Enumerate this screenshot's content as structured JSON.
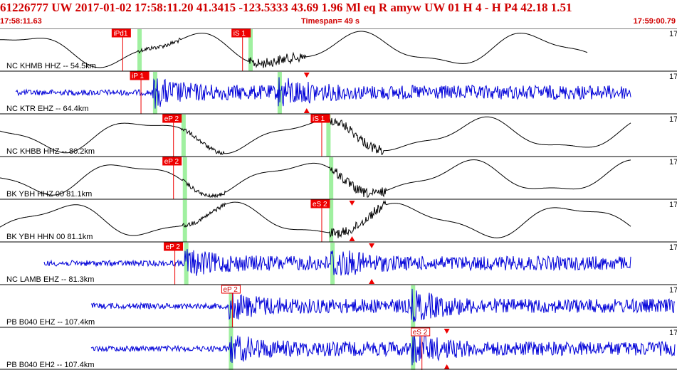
{
  "header": {
    "title": "61226777 UW 2017-01-02 17:58:11.20   41.3415 -123.5333  43.69  1.96 Ml  eq  R amyw     UW 01  H   4  -  H P4   42.18  1.51",
    "start_time": "17:58:11.63",
    "timespan": "Timespan=  49 s",
    "end_time": "17:59:00.79"
  },
  "colors": {
    "title_red": "#d00000",
    "trace_black": "#000000",
    "trace_blue": "#0000d8",
    "pick_red": "#ee0000",
    "phase_window_green": "#a0f0a0"
  },
  "channels": [
    {
      "label": "NC KHMB HHZ -- 54.5km",
      "color": "black",
      "scale_label": "17",
      "picks": [
        {
          "text": "iPd1",
          "filled": true,
          "x": 0.176
        },
        {
          "text": "iS 1",
          "filled": true,
          "x": 0.353
        }
      ],
      "windows": [
        0.203,
        0.367
      ],
      "markers": []
    },
    {
      "label": "NC KTR EHZ -- 64.4km",
      "color": "blue",
      "scale_label": "17",
      "picks": [
        {
          "text": "iP 1",
          "filled": true,
          "x": 0.203
        }
      ],
      "windows": [
        0.226,
        0.41
      ],
      "markers": [
        0.453
      ]
    },
    {
      "label": "NC KHBB HHZ -- 80.2km",
      "color": "black",
      "scale_label": "17",
      "picks": [
        {
          "text": "eP 2",
          "filled": true,
          "x": 0.251
        },
        {
          "text": "iS 1",
          "filled": true,
          "x": 0.47
        }
      ],
      "windows": [
        0.268,
        0.482
      ],
      "markers": []
    },
    {
      "label": "BK YBH HHZ 00 81.1km",
      "color": "black",
      "scale_label": "17",
      "picks": [
        {
          "text": "eP 2",
          "filled": true,
          "x": 0.251
        }
      ],
      "windows": [
        0.27,
        0.486
      ],
      "markers": []
    },
    {
      "label": "BK YBH HHN 00 81.1km",
      "color": "black",
      "scale_label": "17",
      "picks": [
        {
          "text": "eS 2",
          "filled": true,
          "x": 0.47
        }
      ],
      "windows": [
        0.27,
        0.486
      ],
      "markers": [
        0.52
      ]
    },
    {
      "label": "NC LAMB EHZ -- 81.3km",
      "color": "blue",
      "scale_label": "17",
      "picks": [
        {
          "text": "eP 2",
          "filled": true,
          "x": 0.253
        }
      ],
      "windows": [
        0.272,
        0.488
      ],
      "markers": [
        0.549
      ]
    },
    {
      "label": "PB B040 EHZ -- 107.4km",
      "color": "blue",
      "scale_label": "17",
      "picks": [
        {
          "text": "eP 2",
          "filled": false,
          "x": 0.338
        }
      ],
      "windows": [
        0.338,
        0.607
      ],
      "markers": []
    },
    {
      "label": "PB B040 EH2 -- 107.4km",
      "color": "blue",
      "scale_label": "17",
      "picks": [
        {
          "text": "eS 2",
          "filled": false,
          "x": 0.618
        }
      ],
      "windows": [
        0.338,
        0.607
      ],
      "markers": [
        0.66
      ]
    }
  ]
}
